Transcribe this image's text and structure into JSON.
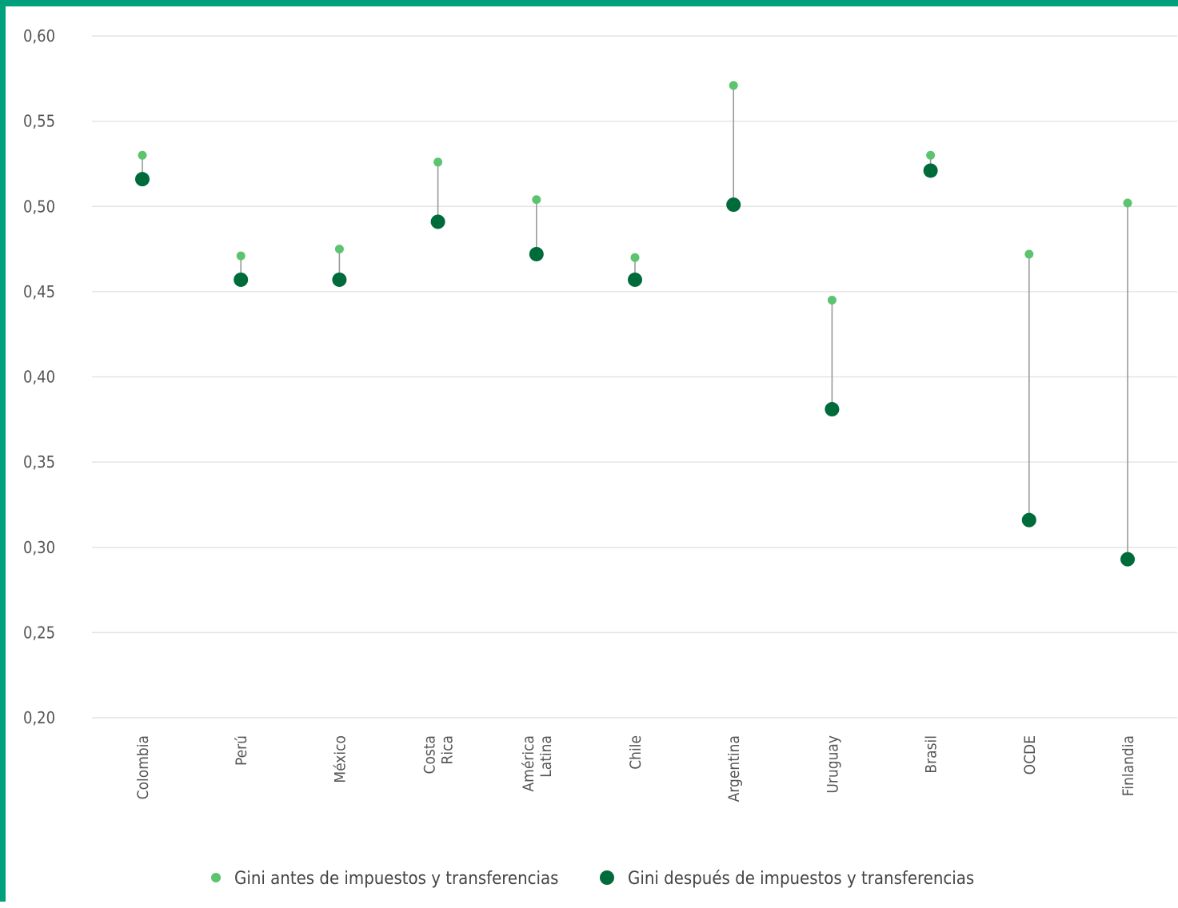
{
  "chart_data": {
    "type": "dumbbell",
    "categories": [
      "Colombia",
      "Perú",
      "México",
      "Costa Rica",
      "América Latina",
      "Chile",
      "Argentina",
      "Uruguay",
      "Brasil",
      "OCDE",
      "Finlandia"
    ],
    "series": [
      {
        "name": "Gini antes de impuestos y transferencias",
        "values": [
          0.53,
          0.471,
          0.475,
          0.526,
          0.504,
          0.47,
          0.571,
          0.445,
          0.53,
          0.472,
          0.502
        ]
      },
      {
        "name": "Gini después de impuestos y transferencias",
        "values": [
          0.516,
          0.457,
          0.457,
          0.491,
          0.472,
          0.457,
          0.501,
          0.381,
          0.521,
          0.316,
          0.293
        ]
      }
    ],
    "yticks": [
      "0,20",
      "0,25",
      "0,30",
      "0,35",
      "0,40",
      "0,45",
      "0,50",
      "0,55",
      "0,60"
    ],
    "ylim": [
      0.2,
      0.6
    ],
    "grid": true,
    "legend_position": "bottom",
    "colors": {
      "before": "#5cc46f",
      "after": "#006b3a",
      "connector": "#9a9a9a",
      "grid": "#e4e4e4",
      "frame": "#00a07c"
    }
  }
}
